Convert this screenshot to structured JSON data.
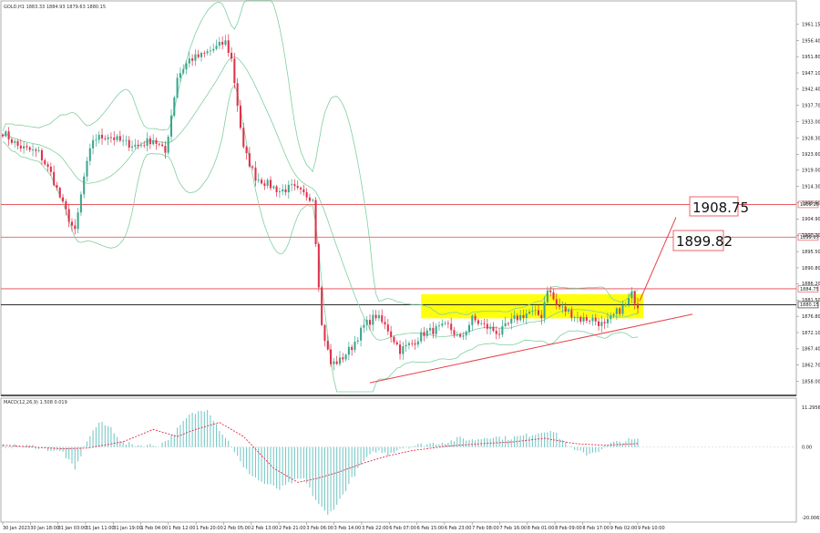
{
  "chart_data": {
    "type": "candlestick",
    "symbol_line": "GOLD,H1  1883.33  1884.93  1879.63  1880.15",
    "ylim": [
      1855.0,
      1965.0
    ],
    "y_ticks": [
      "1961.15",
      "1956.40",
      "1951.80",
      "1947.10",
      "1942.40",
      "1937.70",
      "1933.00",
      "1928.30",
      "1923.60",
      "1919.00",
      "1914.30",
      "1909.60",
      "1904.90",
      "1900.20",
      "1895.50",
      "1890.80",
      "1886.20",
      "1881.50",
      "1876.80",
      "1872.10",
      "1867.40",
      "1862.70",
      "1858.00"
    ],
    "x_ticks": [
      "30 Jan 2023",
      "30 Jan 18:00",
      "31 Jan 03:00",
      "31 Jan 11:00",
      "31 Jan 19:00",
      "1 Feb 04:00",
      "1 Feb 12:00",
      "1 Feb 20:00",
      "2 Feb 05:00",
      "2 Feb 13:00",
      "2 Feb 21:00",
      "3 Feb 06:00",
      "3 Feb 14:00",
      "3 Feb 22:00",
      "6 Feb 07:00",
      "6 Feb 15:00",
      "6 Feb 23:00",
      "7 Feb 08:00",
      "7 Feb 16:00",
      "8 Feb 01:00",
      "8 Feb 09:00",
      "8 Feb 17:00",
      "9 Feb 02:00",
      "9 Feb 10:00"
    ],
    "levels": [
      {
        "value": 1909.1,
        "label": "1909.10",
        "color": "#e8404a"
      },
      {
        "value": 1899.67,
        "label": "1899.67",
        "color": "#e8404a"
      },
      {
        "value": 1884.75,
        "label": "1884.75",
        "color": "#e8404a"
      },
      {
        "value": 1880.15,
        "label": "1880.15",
        "color": "#111111"
      }
    ],
    "annotations": [
      "1908.75",
      "1899.82"
    ],
    "anchors": [
      [
        0,
        1930
      ],
      [
        5,
        1926
      ],
      [
        8,
        1925
      ],
      [
        12,
        1924
      ],
      [
        16,
        1918
      ],
      [
        20,
        1909
      ],
      [
        24,
        1901
      ],
      [
        27,
        1917
      ],
      [
        30,
        1928
      ],
      [
        35,
        1929
      ],
      [
        40,
        1927
      ],
      [
        45,
        1926
      ],
      [
        50,
        1928
      ],
      [
        54,
        1924
      ],
      [
        58,
        1946
      ],
      [
        62,
        1951
      ],
      [
        66,
        1952
      ],
      [
        70,
        1954
      ],
      [
        74,
        1956
      ],
      [
        76,
        1951
      ],
      [
        80,
        1925
      ],
      [
        84,
        1917
      ],
      [
        88,
        1915
      ],
      [
        92,
        1913
      ],
      [
        96,
        1914
      ],
      [
        100,
        1912
      ],
      [
        103,
        1911
      ],
      [
        106,
        1874
      ],
      [
        109,
        1863
      ],
      [
        112,
        1864
      ],
      [
        116,
        1868
      ],
      [
        120,
        1874
      ],
      [
        124,
        1877
      ],
      [
        128,
        1873
      ],
      [
        132,
        1867
      ],
      [
        136,
        1869
      ],
      [
        140,
        1872
      ],
      [
        144,
        1873
      ],
      [
        148,
        1874
      ],
      [
        152,
        1870
      ],
      [
        156,
        1876
      ],
      [
        160,
        1874
      ],
      [
        165,
        1872
      ],
      [
        170,
        1876
      ],
      [
        175,
        1878
      ],
      [
        179,
        1877
      ],
      [
        181,
        1885
      ],
      [
        184,
        1880
      ],
      [
        188,
        1878
      ],
      [
        192,
        1876
      ],
      [
        196,
        1876
      ],
      [
        200,
        1874
      ],
      [
        204,
        1878
      ],
      [
        207,
        1880
      ],
      [
        209,
        1883
      ],
      [
        211,
        1880
      ]
    ],
    "macd": {
      "label": "MACD(12,26,9) 1.508 0.019",
      "ylim": [
        -20.0,
        11.3
      ],
      "y_ticks": [
        "11.2956",
        "0.00",
        "-20.0063"
      ],
      "anchors": [
        [
          0,
          0.2
        ],
        [
          10,
          0.3
        ],
        [
          20,
          -1.5
        ],
        [
          24,
          -6.5
        ],
        [
          28,
          2
        ],
        [
          32,
          7
        ],
        [
          36,
          5.5
        ],
        [
          40,
          1
        ],
        [
          46,
          0.5
        ],
        [
          52,
          0.5
        ],
        [
          56,
          3
        ],
        [
          62,
          9
        ],
        [
          68,
          11
        ],
        [
          72,
          5
        ],
        [
          76,
          0.5
        ],
        [
          80,
          -6
        ],
        [
          86,
          -10
        ],
        [
          92,
          -12
        ],
        [
          96,
          -10
        ],
        [
          100,
          -9
        ],
        [
          104,
          -15
        ],
        [
          108,
          -19.5
        ],
        [
          112,
          -15
        ],
        [
          116,
          -9
        ],
        [
          120,
          -4
        ],
        [
          124,
          -1
        ],
        [
          128,
          -2
        ],
        [
          132,
          -0.3
        ],
        [
          136,
          0.3
        ],
        [
          142,
          1
        ],
        [
          148,
          1.5
        ],
        [
          152,
          2.5
        ],
        [
          156,
          2
        ],
        [
          162,
          3
        ],
        [
          168,
          2.5
        ],
        [
          172,
          3
        ],
        [
          178,
          4
        ],
        [
          182,
          5
        ],
        [
          186,
          2
        ],
        [
          190,
          -1
        ],
        [
          194,
          -2
        ],
        [
          198,
          -1
        ],
        [
          202,
          1
        ],
        [
          208,
          2
        ],
        [
          211,
          2
        ]
      ],
      "signal_anchors": [
        [
          0,
          0.5
        ],
        [
          20,
          -0.5
        ],
        [
          28,
          -0.3
        ],
        [
          40,
          1.5
        ],
        [
          50,
          5
        ],
        [
          58,
          3
        ],
        [
          64,
          5
        ],
        [
          72,
          7
        ],
        [
          80,
          3
        ],
        [
          90,
          -6
        ],
        [
          98,
          -10
        ],
        [
          104,
          -9
        ],
        [
          112,
          -7
        ],
        [
          120,
          -4.5
        ],
        [
          128,
          -2.5
        ],
        [
          136,
          -1
        ],
        [
          148,
          0.3
        ],
        [
          160,
          1
        ],
        [
          170,
          1.5
        ],
        [
          180,
          2.5
        ],
        [
          190,
          1
        ],
        [
          200,
          0.5
        ],
        [
          211,
          1
        ]
      ]
    }
  }
}
